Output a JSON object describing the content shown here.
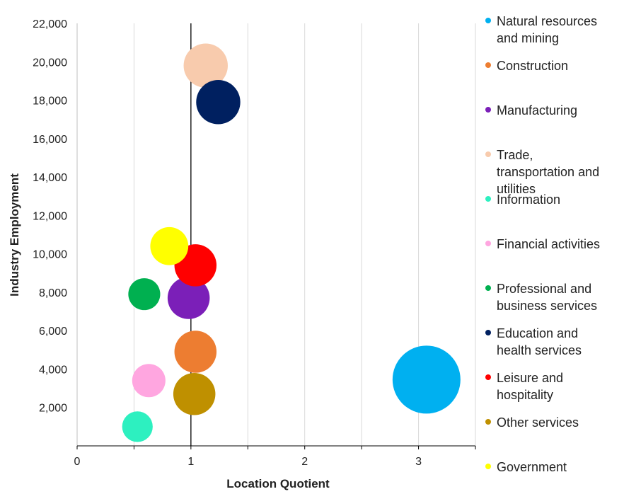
{
  "chart_data": {
    "type": "scatter",
    "title": "",
    "xlabel": "Location Quotient",
    "ylabel": "Industry Employment",
    "xlim": [
      0,
      3.5
    ],
    "ylim": [
      0,
      22000
    ],
    "x_ticks": [
      "0",
      "1",
      "2",
      "3"
    ],
    "y_ticks": [
      "2,000",
      "4,000",
      "6,000",
      "8,000",
      "10,000",
      "12,000",
      "14,000",
      "16,000",
      "18,000",
      "20,000",
      "22,000"
    ],
    "x_tick_values": [
      0,
      1,
      2,
      3
    ],
    "y_tick_values": [
      2000,
      4000,
      6000,
      8000,
      10000,
      12000,
      14000,
      16000,
      18000,
      20000,
      22000
    ],
    "reference_line_x": 1,
    "grid": "vertical",
    "legend_position": "right",
    "series": [
      {
        "name": "Natural resources and mining",
        "color": "#00b0f0",
        "x": 3.07,
        "y": 3450,
        "size": 1.0
      },
      {
        "name": "Construction",
        "color": "#ed7d31",
        "x": 1.04,
        "y": 4900,
        "size": 0.62
      },
      {
        "name": "Manufacturing",
        "color": "#7b1fb8",
        "x": 0.98,
        "y": 7700,
        "size": 0.62
      },
      {
        "name": "Trade, transportation and utilities",
        "color": "#f8cbad",
        "x": 1.13,
        "y": 19800,
        "size": 0.65
      },
      {
        "name": "Information",
        "color": "#2df0c0",
        "x": 0.53,
        "y": 1000,
        "size": 0.45
      },
      {
        "name": "Financial activities",
        "color": "#ffa6e0",
        "x": 0.63,
        "y": 3400,
        "size": 0.49
      },
      {
        "name": "Professional and business services",
        "color": "#00b050",
        "x": 0.59,
        "y": 7900,
        "size": 0.47
      },
      {
        "name": "Education and health services",
        "color": "#002060",
        "x": 1.24,
        "y": 17900,
        "size": 0.65
      },
      {
        "name": "Leisure and hospitality",
        "color": "#ff0000",
        "x": 1.04,
        "y": 9400,
        "size": 0.62
      },
      {
        "name": "Other services",
        "color": "#bf9000",
        "x": 1.03,
        "y": 2700,
        "size": 0.62
      },
      {
        "name": "Government",
        "color": "#ffff00",
        "x": 0.81,
        "y": 10400,
        "size": 0.56
      }
    ]
  },
  "legend": {
    "items": [
      {
        "lines": [
          "Natural resources",
          "and mining"
        ],
        "color": "#00b0f0"
      },
      {
        "lines": [
          "Construction"
        ],
        "color": "#ed7d31"
      },
      {
        "lines": [
          "Manufacturing"
        ],
        "color": "#7b1fb8"
      },
      {
        "lines": [
          "Trade,",
          "transportation and",
          "utilities"
        ],
        "color": "#f8cbad"
      },
      {
        "lines": [
          "Information"
        ],
        "color": "#2df0c0"
      },
      {
        "lines": [
          "Financial activities"
        ],
        "color": "#ffa6e0"
      },
      {
        "lines": [
          "Professional and",
          "business services"
        ],
        "color": "#00b050"
      },
      {
        "lines": [
          "Education and",
          "health services"
        ],
        "color": "#002060"
      },
      {
        "lines": [
          "Leisure and",
          "hospitality"
        ],
        "color": "#ff0000"
      },
      {
        "lines": [
          "Other services"
        ],
        "color": "#bf9000"
      },
      {
        "lines": [
          "Government"
        ],
        "color": "#ffff00"
      }
    ]
  }
}
